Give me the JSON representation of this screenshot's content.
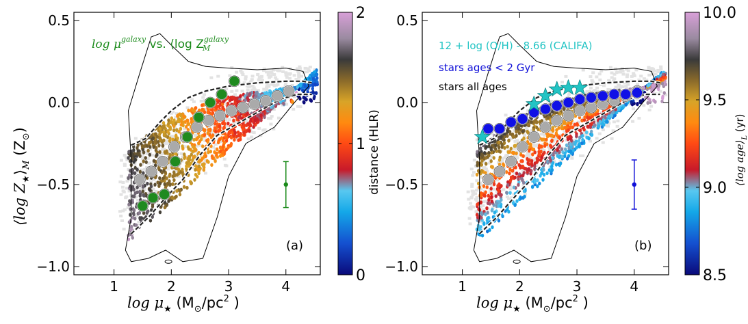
{
  "chart_data": [
    {
      "type": "scatter",
      "panel_label": "(a)",
      "title_parts": [
        "log μ",
        "galaxy",
        " vs. ⟨log Z",
        "⟩",
        "galaxy",
        "M"
      ],
      "title_color": "#1a8a1a",
      "xlabel_parts": [
        "log μ",
        "★",
        " (M",
        "⊙",
        "/pc",
        "2",
        " )"
      ],
      "ylabel_parts": [
        "⟨log Z",
        "★",
        "⟩",
        "M",
        " (Z",
        "⊙",
        ")"
      ],
      "xlim": [
        0.3,
        4.6
      ],
      "ylim": [
        -1.05,
        0.55
      ],
      "xticks": [
        1,
        2,
        3,
        4
      ],
      "xtick_labels": [
        "1",
        "2",
        "3",
        "4"
      ],
      "yticks": [
        0.5,
        0.0,
        -0.5,
        -1.0
      ],
      "ytick_labels": [
        "0.5",
        "0.0",
        "−0.5",
        "−1.0"
      ],
      "colorbar": {
        "label": "distance (HLR)",
        "range": [
          0,
          2
        ],
        "ticks": [
          0,
          1,
          2
        ],
        "tick_labels": [
          "0",
          "1",
          "2"
        ],
        "colormap": "distance"
      },
      "series": [
        {
          "marker": "circle",
          "color": "#aaaaaa",
          "x": [
            1.45,
            1.65,
            1.85,
            2.05,
            2.25,
            2.45,
            2.65,
            2.85,
            3.05,
            3.25,
            3.45,
            3.65,
            3.85,
            4.05
          ],
          "y": [
            -0.47,
            -0.42,
            -0.36,
            -0.27,
            -0.21,
            -0.15,
            -0.11,
            -0.08,
            -0.05,
            -0.03,
            -0.01,
            0.01,
            0.04,
            0.07
          ]
        },
        {
          "marker": "circle",
          "color": "#1f8a1f",
          "x": [
            1.5,
            1.68,
            1.88,
            2.07,
            2.28,
            2.48,
            2.68,
            2.88,
            3.1
          ],
          "y": [
            -0.63,
            -0.58,
            -0.56,
            -0.36,
            -0.21,
            -0.09,
            0.0,
            0.05,
            0.13
          ]
        }
      ],
      "error_bar": {
        "x": 4.0,
        "y": -0.5,
        "yerr": 0.14,
        "color": "#1a8a1a"
      }
    },
    {
      "type": "scatter",
      "panel_label": "(b)",
      "legend_text": [
        "12 + log (O/H) - 8.66 (CALIFA)",
        "stars ages < 2 Gyr",
        "stars all ages"
      ],
      "legend_colors": [
        "#22c4c4",
        "#1010d8",
        "#000000"
      ],
      "xlabel_parts": [
        "log μ",
        "★",
        " (M",
        "⊙",
        "/pc",
        "2",
        " )"
      ],
      "xlim": [
        0.3,
        4.6
      ],
      "ylim": [
        -1.05,
        0.55
      ],
      "xticks": [
        1,
        2,
        3,
        4
      ],
      "xtick_labels": [
        "1",
        "2",
        "3",
        "4"
      ],
      "yticks": [
        0.5,
        0.0,
        -0.5,
        -1.0
      ],
      "ytick_labels": [
        "0.5",
        "0.0",
        "−0.5",
        "−1.0"
      ],
      "colorbar": {
        "label_parts": [
          "⟨log age⟩",
          "L",
          " (yr)"
        ],
        "range": [
          8.5,
          10.0
        ],
        "ticks": [
          8.5,
          9.0,
          9.5,
          10.0
        ],
        "tick_labels": [
          "8.5",
          "9.0",
          "9.5",
          "10.0"
        ],
        "colormap": "age"
      },
      "series": [
        {
          "marker": "circle",
          "color": "#aaaaaa",
          "x": [
            1.45,
            1.65,
            1.85,
            2.05,
            2.25,
            2.45,
            2.65,
            2.85,
            3.05,
            3.25,
            3.45,
            3.65,
            3.85,
            4.05
          ],
          "y": [
            -0.47,
            -0.42,
            -0.36,
            -0.27,
            -0.21,
            -0.15,
            -0.11,
            -0.08,
            -0.05,
            -0.03,
            -0.01,
            0.01,
            0.04,
            0.07
          ]
        },
        {
          "marker": "circle",
          "color": "#1010e6",
          "x": [
            1.45,
            1.65,
            1.85,
            2.05,
            2.25,
            2.45,
            2.65,
            2.85,
            3.05,
            3.25,
            3.45,
            3.65,
            3.85,
            4.05
          ],
          "y": [
            -0.16,
            -0.16,
            -0.12,
            -0.1,
            -0.06,
            -0.04,
            -0.02,
            0.0,
            0.02,
            0.03,
            0.04,
            0.05,
            0.05,
            0.06
          ]
        },
        {
          "marker": "star",
          "color": "#22c4c4",
          "x": [
            1.35,
            2.25,
            2.45,
            2.65,
            2.85,
            3.05
          ],
          "y": [
            -0.21,
            -0.01,
            0.04,
            0.08,
            0.09,
            0.09
          ]
        }
      ],
      "error_bar": {
        "x": 4.0,
        "y": -0.5,
        "yerr": 0.15,
        "color": "#1010d8"
      }
    }
  ]
}
